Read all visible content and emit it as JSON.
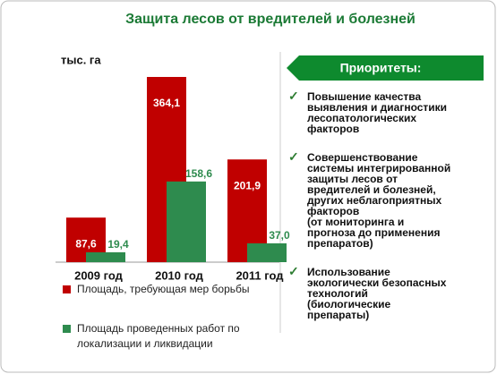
{
  "chart_data": {
    "type": "bar",
    "title": "Защита лесов от вредителей и болезней",
    "y_label": "тыс. га",
    "categories": [
      "2009 год",
      "2010 год",
      "2011 год"
    ],
    "series": [
      {
        "name": "Площадь, требующая мер борьбы",
        "color": "#c00000",
        "values": [
          87.6,
          364.1,
          201.9
        ],
        "value_labels": [
          "87,6",
          "364,1",
          "201,9"
        ]
      },
      {
        "name": "Площадь проведенных работ по локализации и ликвидации",
        "color": "#2e8b4e",
        "values": [
          19.4,
          158.6,
          37.0
        ],
        "value_labels": [
          "19,4",
          "158,6",
          "37,0"
        ]
      }
    ]
  },
  "priorities": {
    "title": "Приоритеты:",
    "items": [
      "Повышение качества\nвыявления и диагностики\nлесопатологических\nфакторов",
      "Совершенствование\nсистемы интегрированной\nзащиты лесов от\nвредителей и болезней,\nдругих неблагоприятных\nфакторов\n(от мониторинга и\nпрогноза до применения\nпрепаратов)",
      "Использование\nэкологически безопасных\nтехнологий\n(биологические\nпрепараты)"
    ]
  }
}
